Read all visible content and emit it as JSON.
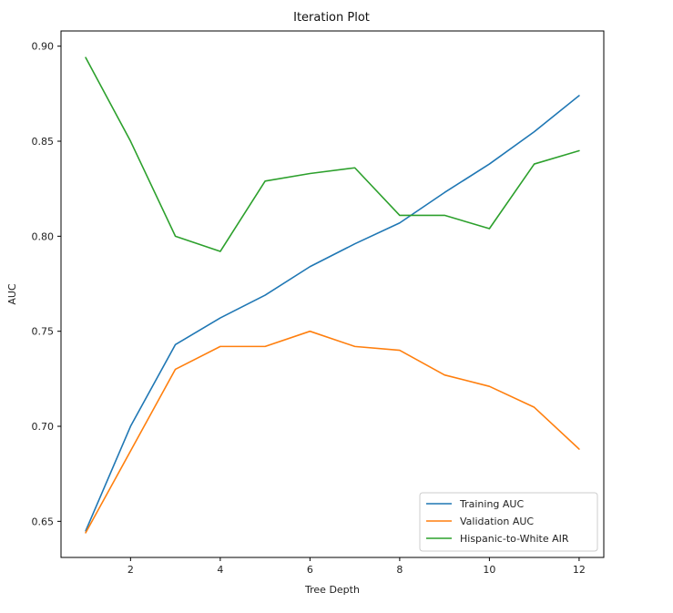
{
  "chart_data": {
    "type": "line",
    "title": "Iteration Plot",
    "xlabel": "Tree Depth",
    "ylabel": "AUC",
    "x": [
      1,
      2,
      3,
      4,
      5,
      6,
      7,
      8,
      9,
      10,
      11,
      12
    ],
    "xlim": [
      0.45,
      12.55
    ],
    "ylim": [
      0.631,
      0.908
    ],
    "xticks": [
      2,
      4,
      6,
      8,
      10,
      12
    ],
    "yticks": [
      0.65,
      0.7,
      0.75,
      0.8,
      0.85,
      0.9
    ],
    "xtick_labels": [
      "2",
      "4",
      "6",
      "8",
      "10",
      "12"
    ],
    "ytick_labels": [
      "0.65",
      "0.70",
      "0.75",
      "0.80",
      "0.85",
      "0.90"
    ],
    "grid": false,
    "legend_position": "bottom-right",
    "series": [
      {
        "name": "Training AUC",
        "color": "#1f77b4",
        "values": [
          0.645,
          0.7,
          0.743,
          0.757,
          0.769,
          0.784,
          0.796,
          0.807,
          0.823,
          0.838,
          0.855,
          0.874
        ]
      },
      {
        "name": "Validation AUC",
        "color": "#ff7f0e",
        "values": [
          0.644,
          0.687,
          0.73,
          0.742,
          0.742,
          0.75,
          0.742,
          0.74,
          0.727,
          0.721,
          0.71,
          0.688
        ]
      },
      {
        "name": "Hispanic-to-White AIR",
        "color": "#2ca02c",
        "values": [
          0.894,
          0.85,
          0.8,
          0.792,
          0.829,
          0.833,
          0.836,
          0.811,
          0.811,
          0.804,
          0.838,
          0.845
        ]
      }
    ]
  }
}
